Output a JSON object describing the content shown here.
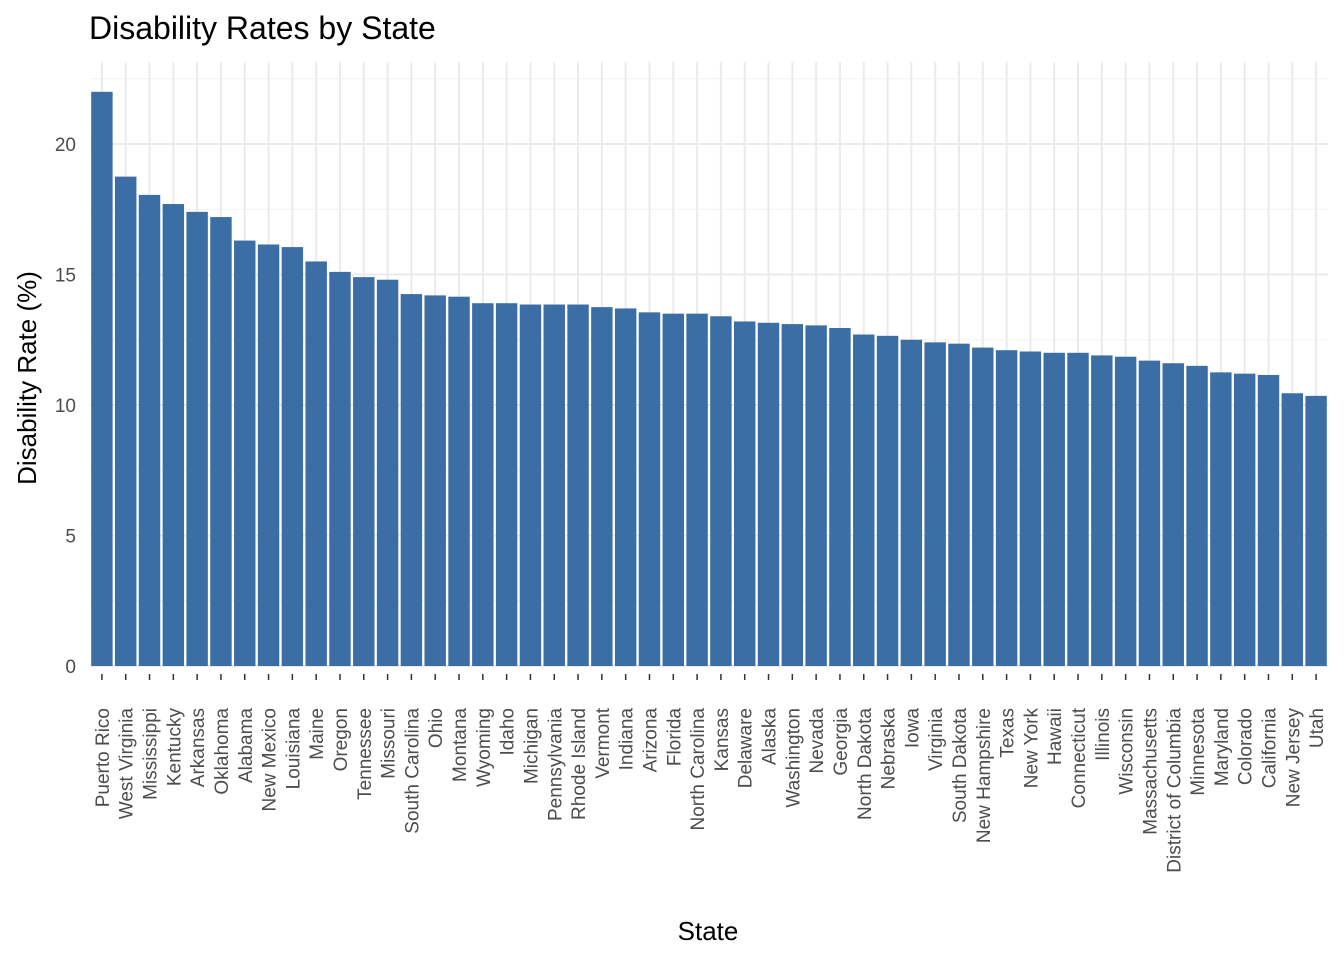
{
  "chart_data": {
    "type": "bar",
    "title": "Disability Rates by State",
    "xlabel": "State",
    "ylabel": "Disability Rate (%)",
    "ylim": [
      0,
      22.6
    ],
    "yticks": [
      0,
      5,
      10,
      15,
      20
    ],
    "grid": true,
    "bar_color": "#3a6ea5",
    "categories": [
      "Puerto Rico",
      "West Virginia",
      "Mississippi",
      "Kentucky",
      "Arkansas",
      "Oklahoma",
      "Alabama",
      "New Mexico",
      "Louisiana",
      "Maine",
      "Oregon",
      "Tennessee",
      "Missouri",
      "South Carolina",
      "Ohio",
      "Montana",
      "Wyoming",
      "Idaho",
      "Michigan",
      "Pennsylvania",
      "Rhode Island",
      "Vermont",
      "Indiana",
      "Arizona",
      "Florida",
      "North Carolina",
      "Kansas",
      "Delaware",
      "Alaska",
      "Washington",
      "Nevada",
      "Georgia",
      "North Dakota",
      "Nebraska",
      "Iowa",
      "Virginia",
      "South Dakota",
      "New Hampshire",
      "Texas",
      "New York",
      "Hawaii",
      "Connecticut",
      "Illinois",
      "Wisconsin",
      "Massachusetts",
      "District of Columbia",
      "Minnesota",
      "Maryland",
      "Colorado",
      "California",
      "New Jersey",
      "Utah"
    ],
    "values": [
      22.0,
      18.75,
      18.05,
      17.7,
      17.4,
      17.2,
      16.3,
      16.15,
      16.05,
      15.5,
      15.1,
      14.9,
      14.8,
      14.25,
      14.2,
      14.15,
      13.9,
      13.9,
      13.85,
      13.85,
      13.85,
      13.75,
      13.7,
      13.55,
      13.5,
      13.5,
      13.4,
      13.2,
      13.15,
      13.1,
      13.05,
      12.95,
      12.7,
      12.65,
      12.5,
      12.4,
      12.35,
      12.2,
      12.1,
      12.05,
      12.0,
      12.0,
      11.9,
      11.85,
      11.7,
      11.6,
      11.5,
      11.25,
      11.2,
      11.15,
      10.45,
      10.35
    ]
  }
}
